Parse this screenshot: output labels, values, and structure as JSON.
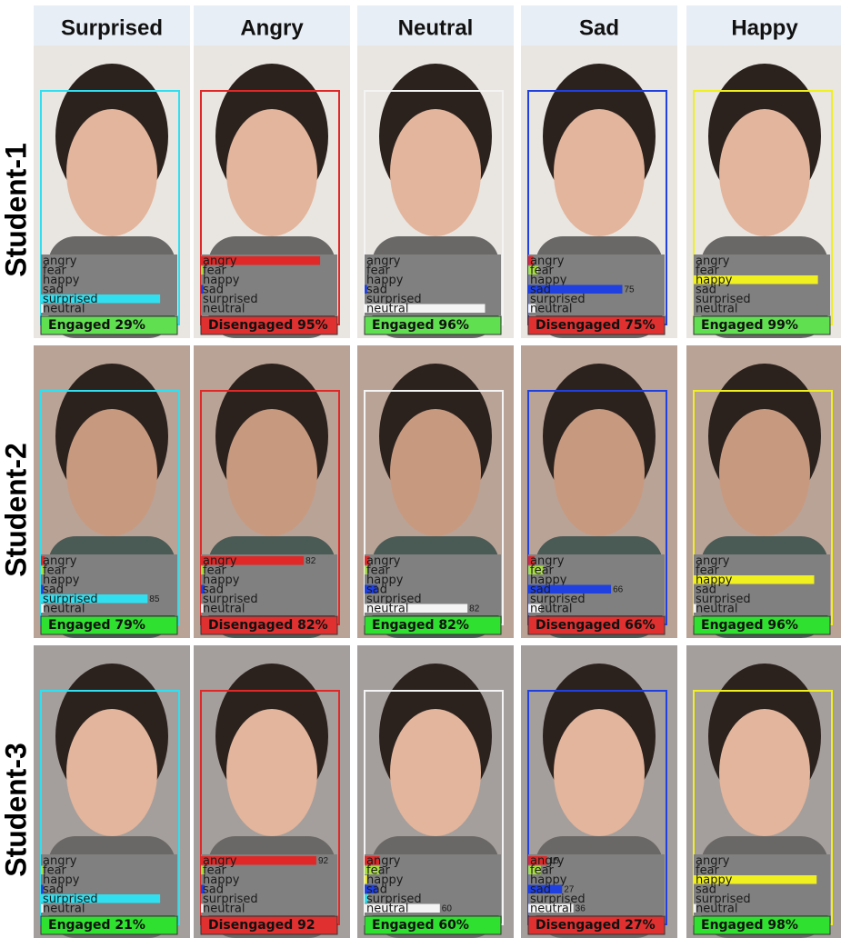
{
  "columns": [
    {
      "title": "Surprised",
      "color": "#30e0f0"
    },
    {
      "title": "Angry",
      "color": "#e02828"
    },
    {
      "title": "Neutral",
      "color": "#f4f4f4"
    },
    {
      "title": "Sad",
      "color": "#2040e0"
    },
    {
      "title": "Happy",
      "color": "#f0f020"
    }
  ],
  "emotions": [
    "angry",
    "fear",
    "happy",
    "sad",
    "surprised",
    "neutral"
  ],
  "emotion_colors": [
    "#e02828",
    "#a8e040",
    "#f0f020",
    "#2040e0",
    "#30e0f0",
    "#f4f4f4"
  ],
  "rows": [
    {
      "label": "Student-1",
      "background": "#e9e6e2",
      "cells": [
        {
          "status": "Engaged 29%",
          "status_color": "#60e050",
          "values": [
            0,
            0,
            0,
            0,
            95,
            2
          ],
          "value_labels": [
            null,
            null,
            null,
            null,
            null,
            null
          ]
        },
        {
          "status": "Disengaged 95%",
          "status_color": "#e03030",
          "values": [
            95,
            2,
            0,
            2,
            0,
            0
          ],
          "value_labels": [
            null,
            null,
            null,
            null,
            null,
            null
          ]
        },
        {
          "status": "Engaged 96%",
          "status_color": "#60e050",
          "values": [
            0,
            0,
            0,
            2,
            0,
            96
          ],
          "value_labels": [
            null,
            null,
            null,
            null,
            null,
            null
          ]
        },
        {
          "status": "Disengaged 75%",
          "status_color": "#e03030",
          "values": [
            4,
            8,
            0,
            75,
            0,
            6
          ],
          "value_labels": [
            null,
            null,
            null,
            "75",
            null,
            null
          ]
        },
        {
          "status": "Engaged 99%",
          "status_color": "#60e050",
          "values": [
            0,
            0,
            99,
            0,
            0,
            0
          ],
          "value_labels": [
            null,
            null,
            null,
            null,
            null,
            null
          ]
        }
      ]
    },
    {
      "label": "Student-2",
      "background": "#b9a397",
      "cells": [
        {
          "status": "Engaged 79%",
          "status_color": "#30e030",
          "values": [
            3,
            3,
            0,
            2,
            85,
            3
          ],
          "value_labels": [
            null,
            null,
            null,
            null,
            "85",
            null
          ]
        },
        {
          "status": "Disengaged 82%",
          "status_color": "#e03030",
          "values": [
            82,
            3,
            0,
            3,
            0,
            2
          ],
          "value_labels": [
            "82",
            null,
            null,
            null,
            null,
            null
          ]
        },
        {
          "status": "Engaged 82%",
          "status_color": "#30e030",
          "values": [
            4,
            2,
            0,
            10,
            0,
            82
          ],
          "value_labels": [
            null,
            null,
            null,
            null,
            null,
            "82"
          ]
        },
        {
          "status": "Disengaged 66%",
          "status_color": "#e03030",
          "values": [
            5,
            12,
            0,
            66,
            0,
            10
          ],
          "value_labels": [
            null,
            null,
            null,
            "66",
            null,
            null
          ]
        },
        {
          "status": "Engaged 96%",
          "status_color": "#30e030",
          "values": [
            0,
            0,
            96,
            0,
            0,
            2
          ],
          "value_labels": [
            null,
            null,
            null,
            null,
            null,
            null
          ]
        }
      ]
    },
    {
      "label": "Student-3",
      "background": "#a49f9c",
      "cells": [
        {
          "status": "Engaged 21%",
          "status_color": "#30e030",
          "values": [
            0,
            2,
            0,
            2,
            95,
            2
          ],
          "value_labels": [
            null,
            null,
            null,
            null,
            null,
            null
          ]
        },
        {
          "status": "Disengaged 92",
          "status_color": "#e03030",
          "values": [
            92,
            3,
            0,
            3,
            0,
            2
          ],
          "value_labels": [
            "92",
            null,
            null,
            null,
            null,
            null
          ]
        },
        {
          "status": "Engaged 60%",
          "status_color": "#30e030",
          "values": [
            12,
            12,
            2,
            10,
            3,
            60
          ],
          "value_labels": [
            null,
            null,
            null,
            null,
            null,
            "60"
          ]
        },
        {
          "status": "Disengaged 27%",
          "status_color": "#e03030",
          "values": [
            15,
            10,
            0,
            27,
            0,
            36
          ],
          "value_labels": [
            "15",
            null,
            null,
            "27",
            null,
            "36"
          ]
        },
        {
          "status": "Engaged 98%",
          "status_color": "#30e030",
          "values": [
            0,
            0,
            98,
            0,
            0,
            2
          ],
          "value_labels": [
            null,
            null,
            null,
            null,
            null,
            null
          ]
        }
      ]
    }
  ]
}
